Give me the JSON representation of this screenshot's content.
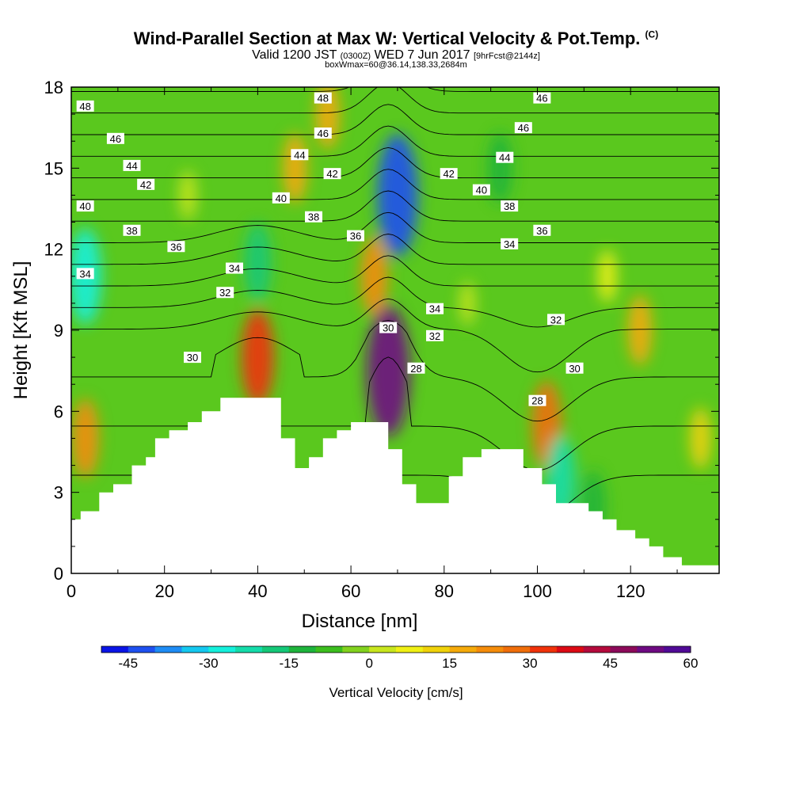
{
  "header": {
    "title": "Wind-Parallel Section at Max W: Vertical Velocity & Pot.Temp.",
    "title_mark": "(C)",
    "valid_main": "Valid 1200 JST",
    "valid_utc": "(0300Z)",
    "valid_date": "WED 7 Jun 2017",
    "valid_fcst": "[9hrFcst@2144z]",
    "box_info": "boxWmax=60@36.14,138.33,2684m"
  },
  "chart_data": {
    "type": "heatmap",
    "xlabel": "Distance [nm]",
    "ylabel": "Height [Kft MSL]",
    "xlim": [
      0,
      139
    ],
    "ylim": [
      0,
      18
    ],
    "x_ticks": [
      "0",
      "20",
      "40",
      "60",
      "80",
      "100",
      "120"
    ],
    "y_ticks": [
      "0",
      "3",
      "6",
      "9",
      "12",
      "15",
      "18"
    ],
    "colorbar": {
      "label": "Vertical Velocity [cm/s]",
      "ticks": [
        "-45",
        "-30",
        "-15",
        "0",
        "15",
        "30",
        "45",
        "60"
      ],
      "colors": [
        "#0a14e6",
        "#1e50f0",
        "#1e8cf5",
        "#14c8f0",
        "#14f0dc",
        "#14dcaa",
        "#14c878",
        "#1eb43c",
        "#3cbe1e",
        "#82d21e",
        "#c8e61e",
        "#f0f014",
        "#f0d20a",
        "#f5aa0a",
        "#f58c0a",
        "#f06e0a",
        "#f0320a",
        "#dc0a14",
        "#b40a3c",
        "#8c0a5a",
        "#6e0a82",
        "#500a96"
      ]
    },
    "velocity_features": [
      {
        "x": 70,
        "y": 14,
        "value": -45
      },
      {
        "x": 68,
        "y": 7.5,
        "value": 50
      },
      {
        "x": 40,
        "y": 8,
        "value": 30
      },
      {
        "x": 65,
        "y": 11,
        "value": 20
      },
      {
        "x": 102,
        "y": 5.5,
        "value": 25
      },
      {
        "x": 3,
        "y": 11,
        "value": -30
      },
      {
        "x": 40,
        "y": 11.5,
        "value": -20
      },
      {
        "x": 105,
        "y": 3.5,
        "value": -25
      },
      {
        "x": 112,
        "y": 2.5,
        "value": -15
      },
      {
        "x": 55,
        "y": 17,
        "value": 15
      },
      {
        "x": 48,
        "y": 15,
        "value": 15
      },
      {
        "x": 92,
        "y": 15,
        "value": -15
      },
      {
        "x": 3,
        "y": 5,
        "value": 20
      },
      {
        "x": 122,
        "y": 9,
        "value": 15
      },
      {
        "x": 135,
        "y": 5,
        "value": 10
      },
      {
        "x": 25,
        "y": 14,
        "value": 3
      },
      {
        "x": 85,
        "y": 10,
        "value": 0
      },
      {
        "x": 115,
        "y": 11,
        "value": 5
      }
    ],
    "terrain": [
      [
        0,
        2
      ],
      [
        2,
        2
      ],
      [
        2,
        2.3
      ],
      [
        6,
        2.3
      ],
      [
        6,
        3
      ],
      [
        9,
        3
      ],
      [
        9,
        3.3
      ],
      [
        13,
        3.3
      ],
      [
        13,
        4
      ],
      [
        16,
        4
      ],
      [
        16,
        4.3
      ],
      [
        18,
        4.3
      ],
      [
        18,
        5
      ],
      [
        21,
        5
      ],
      [
        21,
        5.3
      ],
      [
        25,
        5.3
      ],
      [
        25,
        5.6
      ],
      [
        28,
        5.6
      ],
      [
        28,
        6
      ],
      [
        32,
        6
      ],
      [
        32,
        6.5
      ],
      [
        45,
        6.5
      ],
      [
        45,
        5
      ],
      [
        48,
        5
      ],
      [
        48,
        3.9
      ],
      [
        51,
        3.9
      ],
      [
        51,
        4.3
      ],
      [
        54,
        4.3
      ],
      [
        54,
        5
      ],
      [
        57,
        5
      ],
      [
        57,
        5.3
      ],
      [
        60,
        5.3
      ],
      [
        60,
        5.6
      ],
      [
        68,
        5.6
      ],
      [
        68,
        4.6
      ],
      [
        71,
        4.6
      ],
      [
        71,
        3.3
      ],
      [
        74,
        3.3
      ],
      [
        74,
        2.6
      ],
      [
        81,
        2.6
      ],
      [
        81,
        3.6
      ],
      [
        84,
        3.6
      ],
      [
        84,
        4.3
      ],
      [
        88,
        4.3
      ],
      [
        88,
        4.6
      ],
      [
        97,
        4.6
      ],
      [
        97,
        3.9
      ],
      [
        101,
        3.9
      ],
      [
        101,
        3.3
      ],
      [
        104,
        3.3
      ],
      [
        104,
        2.6
      ],
      [
        111,
        2.6
      ],
      [
        111,
        2.3
      ],
      [
        114,
        2.3
      ],
      [
        114,
        2
      ],
      [
        117,
        2
      ],
      [
        117,
        1.6
      ],
      [
        121,
        1.6
      ],
      [
        121,
        1.3
      ],
      [
        124,
        1.3
      ],
      [
        124,
        1
      ],
      [
        127,
        1
      ],
      [
        127,
        0.6
      ],
      [
        131,
        0.6
      ],
      [
        131,
        0.3
      ],
      [
        139,
        0.3
      ]
    ],
    "isentropes": [
      28,
      29,
      30,
      31,
      32,
      33,
      34,
      35,
      36,
      37,
      38,
      39,
      40,
      41,
      42,
      43,
      44,
      45,
      46,
      47,
      48,
      49
    ],
    "contour_labels": [
      {
        "x": 3,
        "y": 17.3,
        "text": "48"
      },
      {
        "x": 9.5,
        "y": 16.1,
        "text": "46"
      },
      {
        "x": 13,
        "y": 15.1,
        "text": "44"
      },
      {
        "x": 16,
        "y": 14.4,
        "text": "42"
      },
      {
        "x": 3,
        "y": 13.6,
        "text": "40"
      },
      {
        "x": 13,
        "y": 12.7,
        "text": "38"
      },
      {
        "x": 22.5,
        "y": 12.1,
        "text": "36"
      },
      {
        "x": 3,
        "y": 11.1,
        "text": "34"
      },
      {
        "x": 35,
        "y": 11.3,
        "text": "34"
      },
      {
        "x": 33,
        "y": 10.4,
        "text": "32"
      },
      {
        "x": 26,
        "y": 8,
        "text": "30"
      },
      {
        "x": 54,
        "y": 17.6,
        "text": "48"
      },
      {
        "x": 54,
        "y": 16.3,
        "text": "46"
      },
      {
        "x": 49,
        "y": 15.5,
        "text": "44"
      },
      {
        "x": 56,
        "y": 14.8,
        "text": "42"
      },
      {
        "x": 45,
        "y": 13.9,
        "text": "40"
      },
      {
        "x": 52,
        "y": 13.2,
        "text": "38"
      },
      {
        "x": 61,
        "y": 12.5,
        "text": "36"
      },
      {
        "x": 78,
        "y": 9.8,
        "text": "34"
      },
      {
        "x": 78,
        "y": 8.8,
        "text": "32"
      },
      {
        "x": 68,
        "y": 9.1,
        "text": "30"
      },
      {
        "x": 74,
        "y": 7.6,
        "text": "28"
      },
      {
        "x": 101,
        "y": 17.6,
        "text": "46"
      },
      {
        "x": 97,
        "y": 16.5,
        "text": "46"
      },
      {
        "x": 93,
        "y": 15.4,
        "text": "44"
      },
      {
        "x": 81,
        "y": 14.8,
        "text": "42"
      },
      {
        "x": 88,
        "y": 14.2,
        "text": "40"
      },
      {
        "x": 94,
        "y": 13.6,
        "text": "38"
      },
      {
        "x": 101,
        "y": 12.7,
        "text": "36"
      },
      {
        "x": 94,
        "y": 12.2,
        "text": "34"
      },
      {
        "x": 104,
        "y": 9.4,
        "text": "32"
      },
      {
        "x": 108,
        "y": 7.6,
        "text": "30"
      },
      {
        "x": 100,
        "y": 6.4,
        "text": "28"
      }
    ]
  }
}
